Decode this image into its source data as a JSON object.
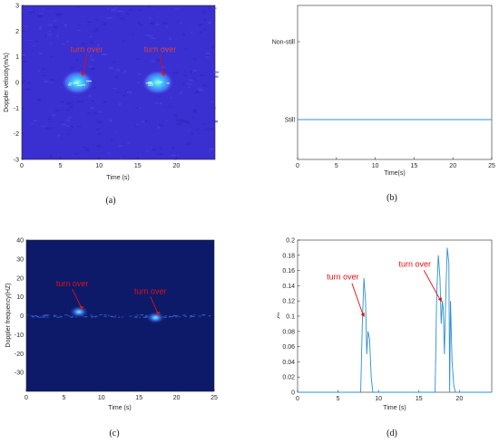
{
  "colors": {
    "spectro_bg_a": "#3a2fd0",
    "spectro_bg_c": "#0d1a6a",
    "line": "#2e8fd0",
    "annotation": "#e01010",
    "axis": "#262626"
  },
  "chart_data": [
    {
      "panel": "a",
      "type": "heatmap",
      "caption": "(a)",
      "xlabel": "Time (s)",
      "ylabel": "Doppler velocity(m/s)",
      "xlim": [
        0,
        25
      ],
      "ylim": [
        -3,
        3
      ],
      "xticks": [
        0,
        5,
        10,
        15,
        20
      ],
      "yticks": [
        3,
        2,
        1,
        0,
        -1,
        -2,
        -3
      ],
      "annotations": [
        {
          "text": "turn over",
          "x": 8.4,
          "y": 0.9
        },
        {
          "text": "turn over",
          "x": 17.9,
          "y": 0.9
        }
      ],
      "energy_blobs": [
        {
          "x": 7.2,
          "y": 0.0
        },
        {
          "x": 17.6,
          "y": 0.0
        }
      ]
    },
    {
      "panel": "b",
      "type": "line",
      "caption": "(b)",
      "xlabel": "Time(s)",
      "ylabel": "",
      "xlim": [
        0,
        25
      ],
      "xticks": [
        0,
        5,
        10,
        15,
        20,
        25
      ],
      "yticks": [
        "Non-still",
        "Still"
      ],
      "series": [
        {
          "x": [
            0,
            25
          ],
          "y": [
            "Still",
            "Still"
          ]
        }
      ]
    },
    {
      "panel": "c",
      "type": "heatmap",
      "caption": "(c)",
      "xlabel": "Time (s)",
      "ylabel": "Doppler frequency(HZ)",
      "xlim": [
        0,
        25
      ],
      "ylim": [
        -40,
        40
      ],
      "xticks": [
        0,
        5,
        10,
        15,
        20,
        25
      ],
      "yticks": [
        40,
        30,
        20,
        10,
        0,
        -10,
        -20,
        -30
      ],
      "annotations": [
        {
          "text": "turn over",
          "x": 6.6,
          "y": 5
        },
        {
          "text": "turn over",
          "x": 17.0,
          "y": 1
        }
      ],
      "energy_blobs": [
        {
          "x": 7.0,
          "y": 2
        },
        {
          "x": 17.2,
          "y": -1
        }
      ]
    },
    {
      "panel": "d",
      "type": "line",
      "caption": "(d)",
      "xlabel": "Time (s)",
      "ylabel": "ξ",
      "xlim": [
        0,
        24
      ],
      "ylim": [
        0,
        0.2
      ],
      "xticks": [
        0,
        5,
        10,
        15,
        20
      ],
      "yticks": [
        0,
        0.02,
        0.04,
        0.06,
        0.08,
        0.1,
        0.12,
        0.14,
        0.16,
        0.18,
        0.2
      ],
      "annotations": [
        {
          "text": "turn over",
          "x": 8.0,
          "y": 0.1
        },
        {
          "text": "turn over",
          "x": 17.3,
          "y": 0.11
        }
      ],
      "series": [
        {
          "x": [
            0,
            7.8,
            8.0,
            8.2,
            8.4,
            8.55,
            8.7,
            8.9,
            9.1,
            9.3,
            9.4,
            18.8,
            17.0,
            17.2,
            17.4,
            17.6,
            17.75,
            17.9,
            18.0,
            18.15,
            18.3,
            18.5,
            18.7,
            18.9,
            19.1,
            19.3,
            19.5,
            24
          ],
          "y": [
            0,
            0,
            0.09,
            0.15,
            0.12,
            0.05,
            0.08,
            0.07,
            0.02,
            0,
            0,
            0,
            0,
            0.13,
            0.18,
            0.15,
            0.09,
            0.12,
            0.11,
            0.05,
            0.12,
            0.19,
            0.17,
            0.12,
            0.04,
            0.01,
            0,
            0
          ]
        }
      ]
    }
  ]
}
